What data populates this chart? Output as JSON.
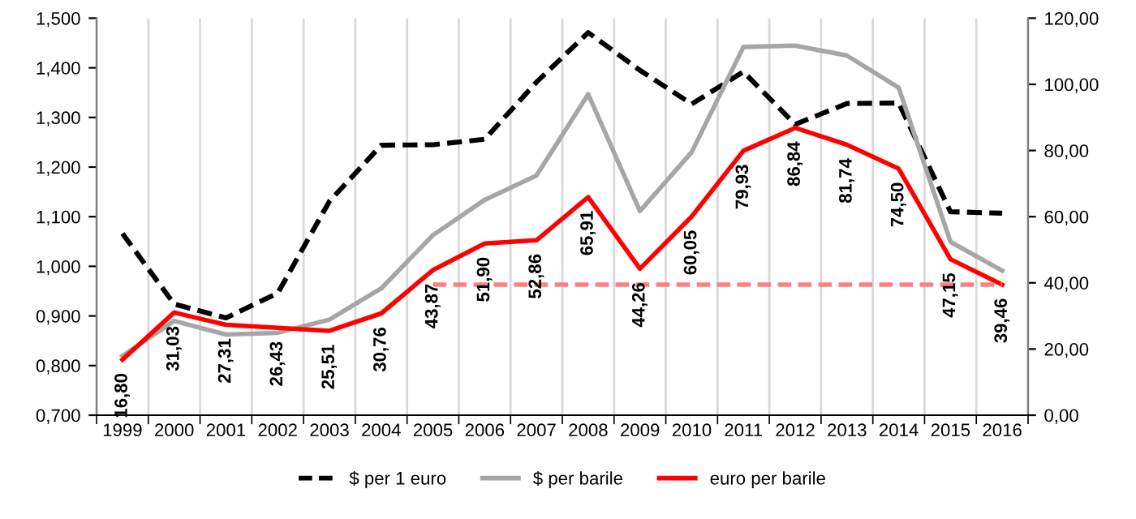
{
  "chart_data": {
    "type": "line",
    "categories": [
      "1999",
      "2000",
      "2001",
      "2002",
      "2003",
      "2004",
      "2005",
      "2006",
      "2007",
      "2008",
      "2009",
      "2010",
      "2011",
      "2012",
      "2013",
      "2014",
      "2015",
      "2016"
    ],
    "series": [
      {
        "name": "$ per 1 euro",
        "color": "#000000",
        "line_style": "dashed",
        "values": [
          1.066,
          0.924,
          0.896,
          0.946,
          1.131,
          1.244,
          1.245,
          1.256,
          1.371,
          1.471,
          1.395,
          1.327,
          1.392,
          1.286,
          1.328,
          1.329,
          1.11,
          1.107
        ]
      },
      {
        "name": "$ per barile",
        "color": "#a6a6a6",
        "axis": "y2",
        "values": [
          17.9,
          28.5,
          24.4,
          24.9,
          28.9,
          38.3,
          54.4,
          65.1,
          72.4,
          97.0,
          61.7,
          79.5,
          111.3,
          111.7,
          108.7,
          99.0,
          52.4,
          43.7
        ]
      },
      {
        "name": "euro per barile",
        "color": "#ff0000",
        "axis": "y2",
        "values": [
          16.8,
          31.03,
          27.31,
          26.43,
          25.51,
          30.76,
          43.87,
          51.9,
          52.86,
          65.91,
          44.26,
          60.05,
          79.93,
          86.84,
          81.74,
          74.5,
          47.15,
          39.46
        ],
        "value_labels": [
          "16,80",
          "31,03",
          "27,31",
          "26,43",
          "25,51",
          "30,76",
          "43,87",
          "51,90",
          "52,86",
          "65,91",
          "44,26",
          "60,05",
          "79,93",
          "86,84",
          "81,74",
          "74,50",
          "47,15",
          "39,46"
        ]
      },
      {
        "color": "#ff8080",
        "axis": "y2",
        "line_style": "dashed",
        "values": [
          null,
          null,
          null,
          null,
          null,
          null,
          39.46,
          39.46,
          39.46,
          39.46,
          39.46,
          39.46,
          39.46,
          39.46,
          39.46,
          39.46,
          39.46,
          39.46
        ]
      }
    ],
    "ylim": [
      0.7,
      1.5
    ],
    "yticks": [
      {
        "value": 0.7,
        "label": "0,700"
      },
      {
        "value": 0.8,
        "label": "0,800"
      },
      {
        "value": 0.9,
        "label": "0,900"
      },
      {
        "value": 1.0,
        "label": "1,000"
      },
      {
        "value": 1.1,
        "label": "1,100"
      },
      {
        "value": 1.2,
        "label": "1,200"
      },
      {
        "value": 1.3,
        "label": "1,300"
      },
      {
        "value": 1.4,
        "label": "1,400"
      },
      {
        "value": 1.5,
        "label": "1,500"
      }
    ],
    "y2lim": [
      0,
      120
    ],
    "y2ticks": [
      {
        "value": 0,
        "label": "0,00"
      },
      {
        "value": 20,
        "label": "20,00"
      },
      {
        "value": 40,
        "label": "40,00"
      },
      {
        "value": 60,
        "label": "60,00"
      },
      {
        "value": 80,
        "label": "80,00"
      },
      {
        "value": 100,
        "label": "100,00"
      },
      {
        "value": 120,
        "label": "120,00"
      }
    ],
    "grid": "x",
    "legend": "bottom",
    "marker": "none"
  }
}
